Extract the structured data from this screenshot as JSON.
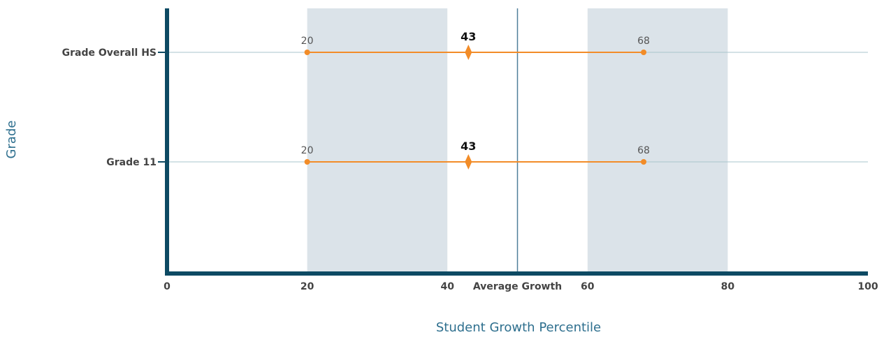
{
  "chart_data": {
    "type": "range-dot",
    "xlabel": "Student Growth Percentile",
    "ylabel": "Grade",
    "xlim": [
      0,
      100
    ],
    "x_ticks": [
      0,
      20,
      40,
      60,
      80,
      100
    ],
    "shaded_bands": [
      [
        20,
        40
      ],
      [
        60,
        80
      ]
    ],
    "reference_line": {
      "x": 50,
      "label": "Average Growth"
    },
    "categories": [
      "Grade Overall HS",
      "Grade 11"
    ],
    "series": [
      {
        "category": "Grade Overall HS",
        "low": 20,
        "median": 43,
        "high": 68
      },
      {
        "category": "Grade 11",
        "low": 20,
        "median": 43,
        "high": 68
      }
    ],
    "colors": {
      "axis": "#0d4a63",
      "band": "#dbe3e9",
      "gridline": "#aac4cc",
      "reference": "#4f7f99",
      "range": "#f28c28",
      "axis_title": "#2e6f8e"
    }
  }
}
